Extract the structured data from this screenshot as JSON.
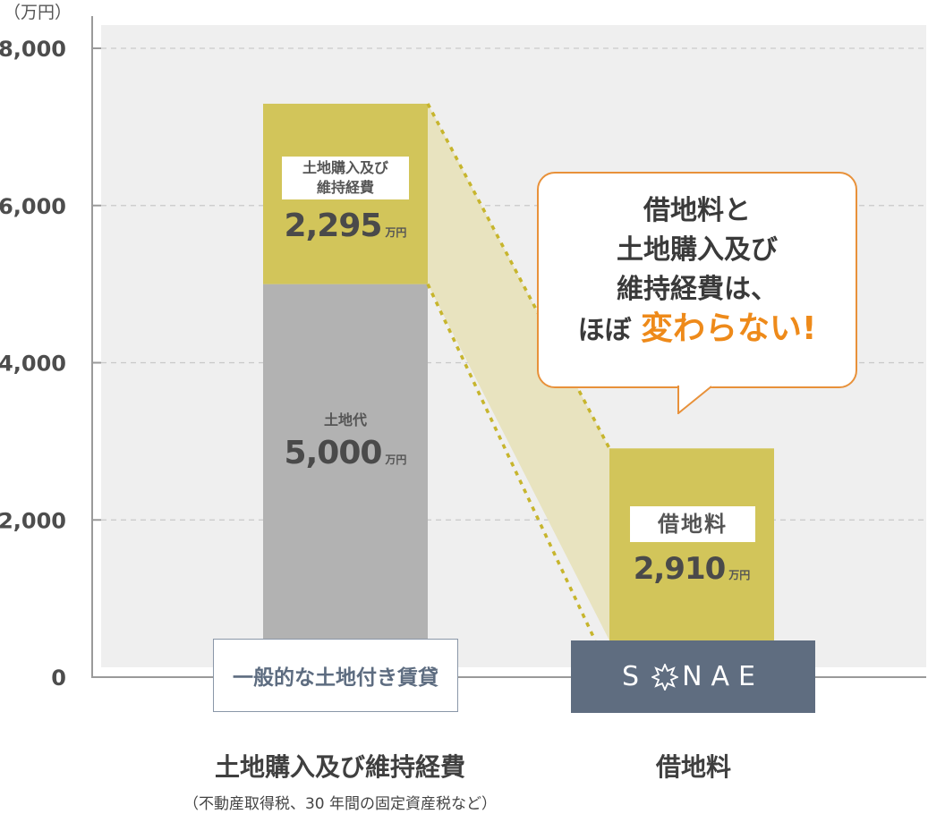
{
  "chart_data": {
    "type": "bar",
    "unit": "（万円）",
    "yticks": [
      "8,000",
      "6,000",
      "4,000",
      "2,000",
      "0"
    ],
    "ylim": [
      0,
      8000
    ],
    "grid": true,
    "bars": [
      {
        "segments": [
          {
            "label": "土地代",
            "value": 5000,
            "display": "5,000",
            "unit": "万円",
            "color": "#b2b2b2"
          },
          {
            "label_line1": "土地購入及び",
            "label_line2": "維持経費",
            "value": 2295,
            "display": "2,295",
            "unit": "万円",
            "color": "#d2c55a"
          }
        ],
        "base_label": "一般的な土地付き賃貸",
        "category": "土地購入及び維持経費",
        "category_note": "（不動産取得税、30 年間の固定資産税など）"
      },
      {
        "segments": [
          {
            "label": "借地料",
            "value": 2910,
            "display": "2,910",
            "unit": "万円",
            "color": "#d2c55a"
          }
        ],
        "base_label": "SONAE",
        "category": "借地料"
      }
    ],
    "callout": {
      "line1": "借地料と",
      "line2": "土地購入及び",
      "line3": "維持経費は、",
      "line4_prefix": "ほぼ",
      "line4_accent": "変わらない!"
    }
  }
}
